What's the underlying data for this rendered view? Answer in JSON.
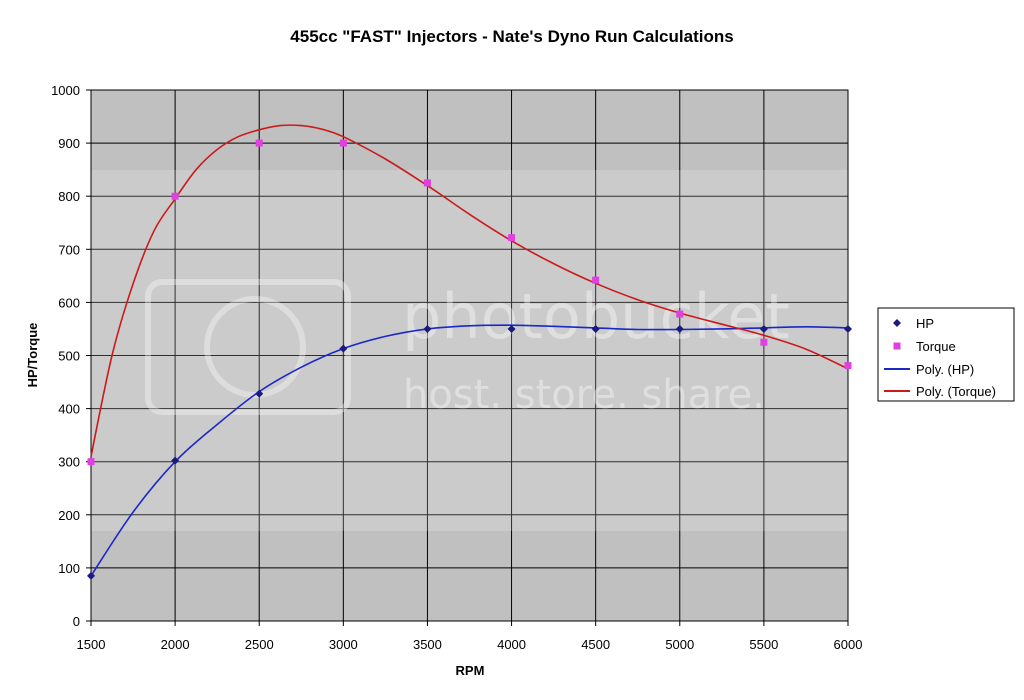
{
  "chart_data": {
    "type": "scatter",
    "title": "455cc \"FAST\" Injectors - Nate's Dyno Run Calculations",
    "xlabel": "RPM",
    "ylabel": "HP/Torque",
    "xlim": [
      1500,
      6000
    ],
    "ylim": [
      0,
      1000
    ],
    "x_ticks": [
      1500,
      2000,
      2500,
      3000,
      3500,
      4000,
      4500,
      5000,
      5500,
      6000
    ],
    "y_ticks": [
      0,
      100,
      200,
      300,
      400,
      500,
      600,
      700,
      800,
      900,
      1000
    ],
    "grid": true,
    "legend_position": "right",
    "x": [
      1500,
      2000,
      2500,
      3000,
      3500,
      4000,
      4500,
      5000,
      5500,
      6000
    ],
    "series": [
      {
        "name": "HP",
        "kind": "markers",
        "marker": "diamond",
        "color": "#1a1a80",
        "values": [
          85,
          302,
          428,
          513,
          550,
          550,
          550,
          550,
          550,
          550
        ]
      },
      {
        "name": "Torque",
        "kind": "markers",
        "marker": "square",
        "color": "#e040e0",
        "values": [
          300,
          800,
          900,
          900,
          825,
          722,
          642,
          578,
          525,
          481
        ]
      },
      {
        "name": "Poly. (HP)",
        "kind": "trendline",
        "color": "#1a28c8",
        "curve": [
          [
            1500,
            85
          ],
          [
            1750,
            205
          ],
          [
            2000,
            300
          ],
          [
            2250,
            370
          ],
          [
            2500,
            432
          ],
          [
            2750,
            478
          ],
          [
            3000,
            513
          ],
          [
            3250,
            536
          ],
          [
            3500,
            550
          ],
          [
            3750,
            556
          ],
          [
            4000,
            557
          ],
          [
            4250,
            555
          ],
          [
            4500,
            552
          ],
          [
            4750,
            549
          ],
          [
            5000,
            549
          ],
          [
            5250,
            550
          ],
          [
            5500,
            552
          ],
          [
            5750,
            554
          ],
          [
            6000,
            552
          ]
        ]
      },
      {
        "name": "Poly. (Torque)",
        "kind": "trendline",
        "color": "#cc1a1a",
        "curve": [
          [
            1500,
            310
          ],
          [
            1625,
            500
          ],
          [
            1750,
            635
          ],
          [
            1875,
            735
          ],
          [
            2000,
            795
          ],
          [
            2125,
            850
          ],
          [
            2250,
            888
          ],
          [
            2375,
            912
          ],
          [
            2500,
            925
          ],
          [
            2625,
            933
          ],
          [
            2750,
            933
          ],
          [
            2875,
            926
          ],
          [
            3000,
            912
          ],
          [
            3250,
            870
          ],
          [
            3500,
            820
          ],
          [
            3750,
            766
          ],
          [
            4000,
            716
          ],
          [
            4250,
            673
          ],
          [
            4500,
            636
          ],
          [
            4750,
            605
          ],
          [
            5000,
            580
          ],
          [
            5250,
            559
          ],
          [
            5500,
            538
          ],
          [
            5750,
            512
          ],
          [
            6000,
            475
          ]
        ]
      }
    ]
  },
  "watermark": {
    "line1": "photobucket",
    "line2": "host. store. share."
  }
}
